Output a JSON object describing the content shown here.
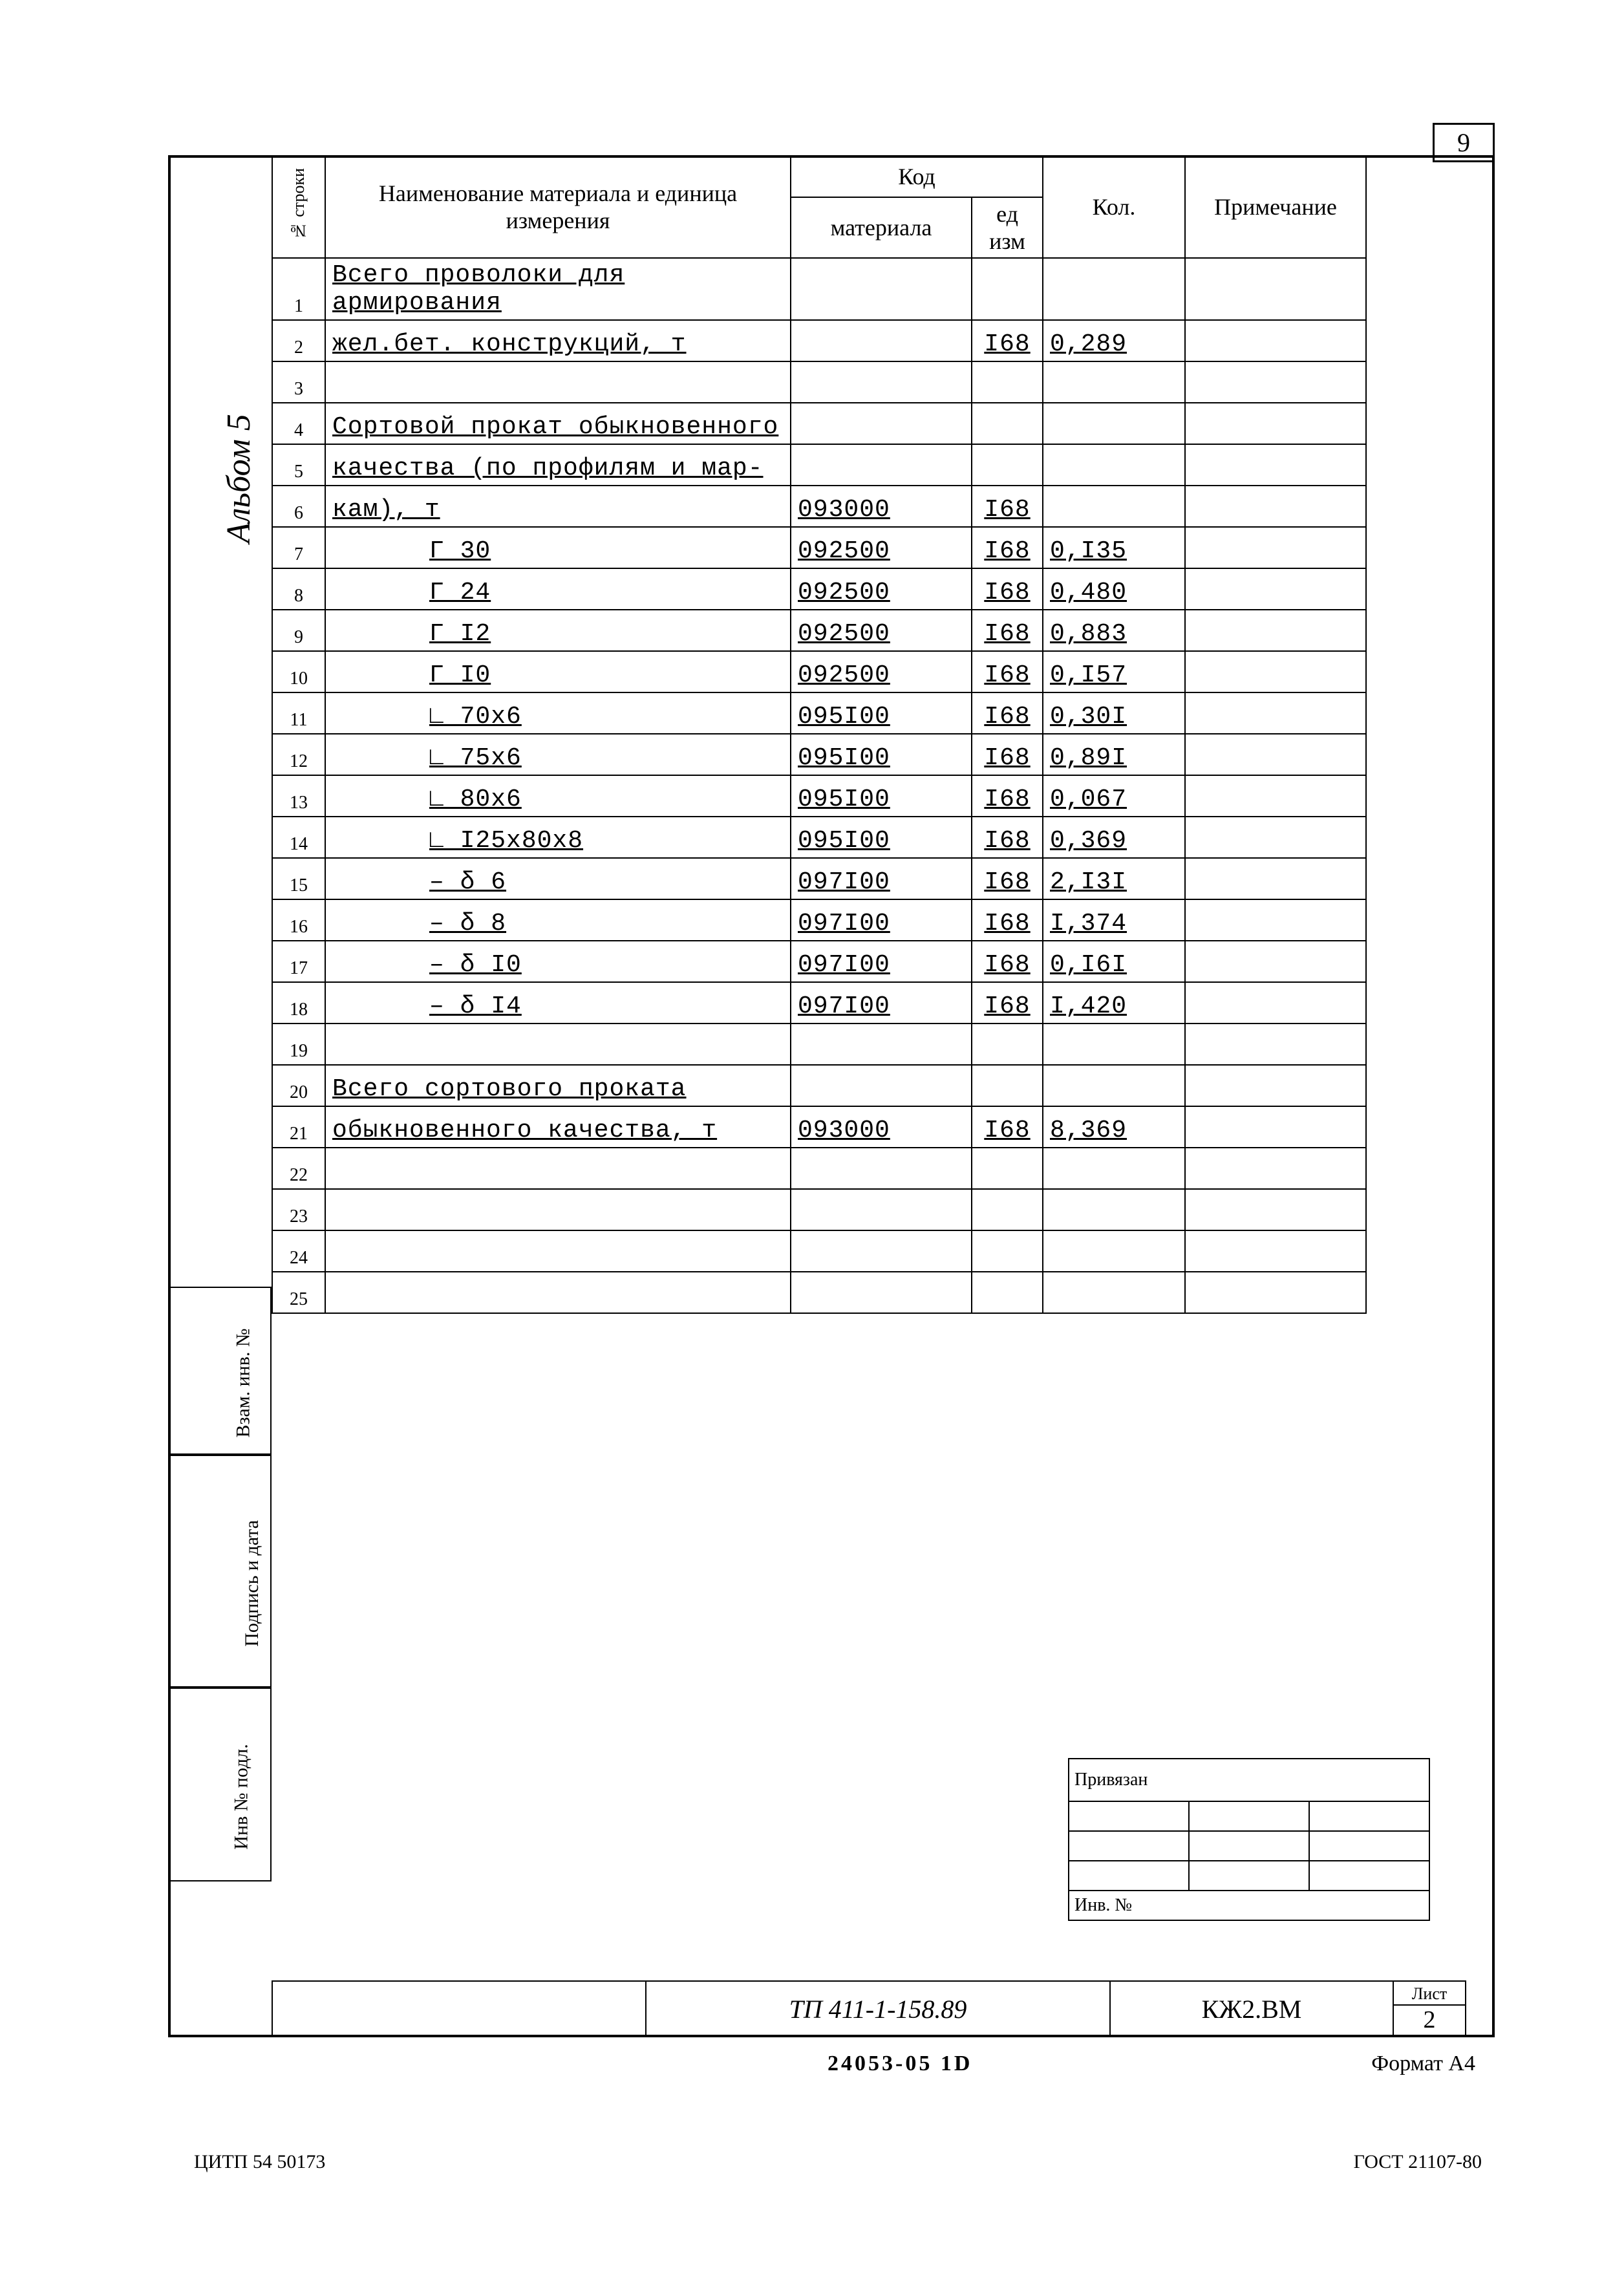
{
  "page_number": "9",
  "album_label": "Альбом 5",
  "left_margin": {
    "vzam_inv": "Взам. инв. №",
    "podpis_data": "Подпись и дата",
    "inv_podl": "Инв № подл."
  },
  "table": {
    "header": {
      "row_no": "№ строки",
      "name": "Наименование материала  и единица измерения",
      "code": "Код",
      "mat_code": "материала",
      "unit": "ед изм",
      "qty": "Кол.",
      "note": "Примечание"
    },
    "rows": [
      {
        "n": "1",
        "name": "Всего проволоки для армирования",
        "code": "",
        "unit": "",
        "qty": "",
        "ul": true
      },
      {
        "n": "2",
        "name": "жел.бет. конструкций, т",
        "code": "",
        "unit": "I68",
        "qty": "0,289",
        "ul": true
      },
      {
        "n": "3",
        "name": "",
        "code": "",
        "unit": "",
        "qty": ""
      },
      {
        "n": "4",
        "name": "Сортовой прокат обыкновенного",
        "code": "",
        "unit": "",
        "qty": "",
        "ul": true
      },
      {
        "n": "5",
        "name": "качества (по профилям и мар-",
        "code": "",
        "unit": "",
        "qty": "",
        "ul": true
      },
      {
        "n": "6",
        "name": "кам), т",
        "code": "093000",
        "unit": "I68",
        "qty": "",
        "ul": true
      },
      {
        "n": "7",
        "name": "Г 30",
        "code": "092500",
        "unit": "I68",
        "qty": "0,I35",
        "indent": true,
        "ul": true
      },
      {
        "n": "8",
        "name": "Г 24",
        "code": "092500",
        "unit": "I68",
        "qty": "0,480",
        "indent": true,
        "ul": true
      },
      {
        "n": "9",
        "name": "Г I2",
        "code": "092500",
        "unit": "I68",
        "qty": "0,883",
        "indent": true,
        "ul": true
      },
      {
        "n": "10",
        "name": "Г I0",
        "code": "092500",
        "unit": "I68",
        "qty": "0,I57",
        "indent": true,
        "ul": true
      },
      {
        "n": "11",
        "name": "∟ 70х6",
        "code": "095I00",
        "unit": "I68",
        "qty": "0,30I",
        "indent": true,
        "ul": true
      },
      {
        "n": "12",
        "name": "∟ 75х6",
        "code": "095I00",
        "unit": "I68",
        "qty": "0,89I",
        "indent": true,
        "ul": true
      },
      {
        "n": "13",
        "name": "∟ 80х6",
        "code": "095I00",
        "unit": "I68",
        "qty": "0,067",
        "indent": true,
        "ul": true
      },
      {
        "n": "14",
        "name": "∟ I25х80х8",
        "code": "095I00",
        "unit": "I68",
        "qty": "0,369",
        "indent": true,
        "ul": true
      },
      {
        "n": "15",
        "name": "– δ 6",
        "code": "097I00",
        "unit": "I68",
        "qty": "2,I3I",
        "indent": true,
        "ul": true
      },
      {
        "n": "16",
        "name": "– δ 8",
        "code": "097I00",
        "unit": "I68",
        "qty": "I,374",
        "indent": true,
        "ul": true
      },
      {
        "n": "17",
        "name": "– δ I0",
        "code": "097I00",
        "unit": "I68",
        "qty": "0,I6I",
        "indent": true,
        "ul": true
      },
      {
        "n": "18",
        "name": "– δ I4",
        "code": "097I00",
        "unit": "I68",
        "qty": "I,420",
        "indent": true,
        "ul": true
      },
      {
        "n": "19",
        "name": "",
        "code": "",
        "unit": "",
        "qty": ""
      },
      {
        "n": "20",
        "name": "Всего сортового проката",
        "code": "",
        "unit": "",
        "qty": "",
        "ul": true
      },
      {
        "n": "21",
        "name": "обыкновенного качества, т",
        "code": "093000",
        "unit": "I68",
        "qty": "8,369",
        "ul": true
      },
      {
        "n": "22",
        "name": "",
        "code": "",
        "unit": "",
        "qty": ""
      },
      {
        "n": "23",
        "name": "",
        "code": "",
        "unit": "",
        "qty": ""
      },
      {
        "n": "24",
        "name": "",
        "code": "",
        "unit": "",
        "qty": ""
      },
      {
        "n": "25",
        "name": "",
        "code": "",
        "unit": "",
        "qty": ""
      }
    ]
  },
  "privyazan_label": "Привязан",
  "inv_no_label": "Инв. №",
  "doc_code_tp": "ТП  411-1-158.89",
  "doc_code_kzh": "КЖ2.ВМ",
  "list_label": "Лист",
  "list_num": "2",
  "bottom_docnum": "24053-05  1D",
  "format_label": "Формат А4",
  "footer_left": "ЦИТП 54 50173",
  "footer_right": "ГОСТ 21107-80"
}
